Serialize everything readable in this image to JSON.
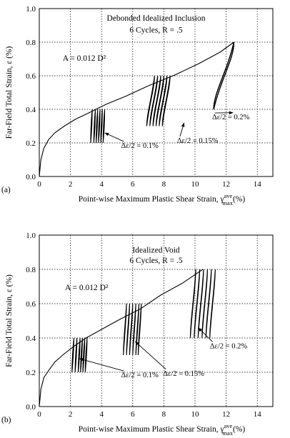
{
  "chart_data": [
    {
      "type": "line",
      "panel_label": "(a)",
      "title": "Debonded Idealized Inclusion",
      "subtitle": "6 Cycles, R = .5",
      "annotation": "A = 0.012 D²",
      "xlabel": "Point-wise Maximum Plastic Shear Strain, γ",
      "xlabel_sup": "ave",
      "xlabel_sub": "max",
      "xlabel_unit": "(%)",
      "ylabel": "Far-Field Total Strain, ε (%)",
      "xlim": [
        0,
        15
      ],
      "ylim": [
        0,
        1.0
      ],
      "xticks": [
        0,
        2,
        4,
        6,
        8,
        10,
        12,
        14
      ],
      "yticks": [
        0.0,
        0.2,
        0.4,
        0.6,
        0.8,
        1.0
      ],
      "grid": true,
      "monotonic_curve": {
        "x": [
          0,
          0.1,
          0.3,
          0.6,
          1.0,
          1.6,
          2.3,
          3.2,
          4.3,
          5.6,
          7.0,
          8.6,
          10.2,
          11.6,
          12.5
        ],
        "y": [
          0.0,
          0.1,
          0.17,
          0.22,
          0.26,
          0.3,
          0.34,
          0.38,
          0.43,
          0.48,
          0.54,
          0.6,
          0.67,
          0.74,
          0.8
        ]
      },
      "cycle_groups": [
        {
          "label": "Δε/2 = 0.1%",
          "ymin": 0.2,
          "ymax": 0.4,
          "x_starts": [
            3.3,
            3.5,
            3.65,
            3.8,
            3.95,
            4.1
          ],
          "dx": 0.1
        },
        {
          "label": "Δε/2 = 0.15%",
          "ymin": 0.3,
          "ymax": 0.6,
          "x_starts": [
            6.9,
            7.1,
            7.3,
            7.5,
            7.7,
            7.9
          ],
          "dx": 0.5
        },
        {
          "label": "Δε/2 = 0.2%",
          "ymin": 0.4,
          "ymax": 0.8,
          "x_starts": [
            11.2,
            11.2,
            11.2,
            11.2,
            11.2,
            11.2
          ],
          "dx": 1.3
        }
      ]
    },
    {
      "type": "line",
      "panel_label": "(b)",
      "title": "Idealized Void",
      "subtitle": "6 Cycles, R = .5",
      "annotation": "A = 0.012 D²",
      "xlabel": "Point-wise Maximum Plastic Shear Strain, γ",
      "xlabel_sup": "ave",
      "xlabel_sub": "max",
      "xlabel_unit": "(%)",
      "ylabel": "Far-Field Total Strain, ε (%)",
      "xlim": [
        0,
        15
      ],
      "ylim": [
        0,
        1.0
      ],
      "xticks": [
        0,
        2,
        4,
        6,
        8,
        10,
        12,
        14
      ],
      "yticks": [
        0.0,
        0.2,
        0.4,
        0.6,
        0.8,
        1.0
      ],
      "grid": true,
      "monotonic_curve": {
        "x": [
          0,
          0.1,
          0.3,
          0.6,
          1.0,
          1.5,
          2.2,
          3.0,
          4.0,
          5.2,
          6.5,
          7.8,
          9.2,
          10.5
        ],
        "y": [
          0.0,
          0.1,
          0.17,
          0.21,
          0.26,
          0.3,
          0.35,
          0.4,
          0.45,
          0.51,
          0.57,
          0.65,
          0.72,
          0.8
        ]
      },
      "cycle_groups": [
        {
          "label": "Δε/2 = 0.1%",
          "ymin": 0.2,
          "ymax": 0.4,
          "x_starts": [
            2.1,
            2.3,
            2.5,
            2.65,
            2.8,
            2.95
          ],
          "dx": 0.12
        },
        {
          "label": "Δε/2 = 0.15%",
          "ymin": 0.3,
          "ymax": 0.6,
          "x_starts": [
            5.4,
            5.6,
            5.8,
            6.0,
            6.2,
            6.35
          ],
          "dx": 0.2
        },
        {
          "label": "Δε/2 = 0.2%",
          "ymin": 0.4,
          "ymax": 0.8,
          "x_starts": [
            9.7,
            9.95,
            10.2,
            10.45,
            10.7,
            10.95
          ],
          "dx": 0.35
        }
      ]
    }
  ]
}
